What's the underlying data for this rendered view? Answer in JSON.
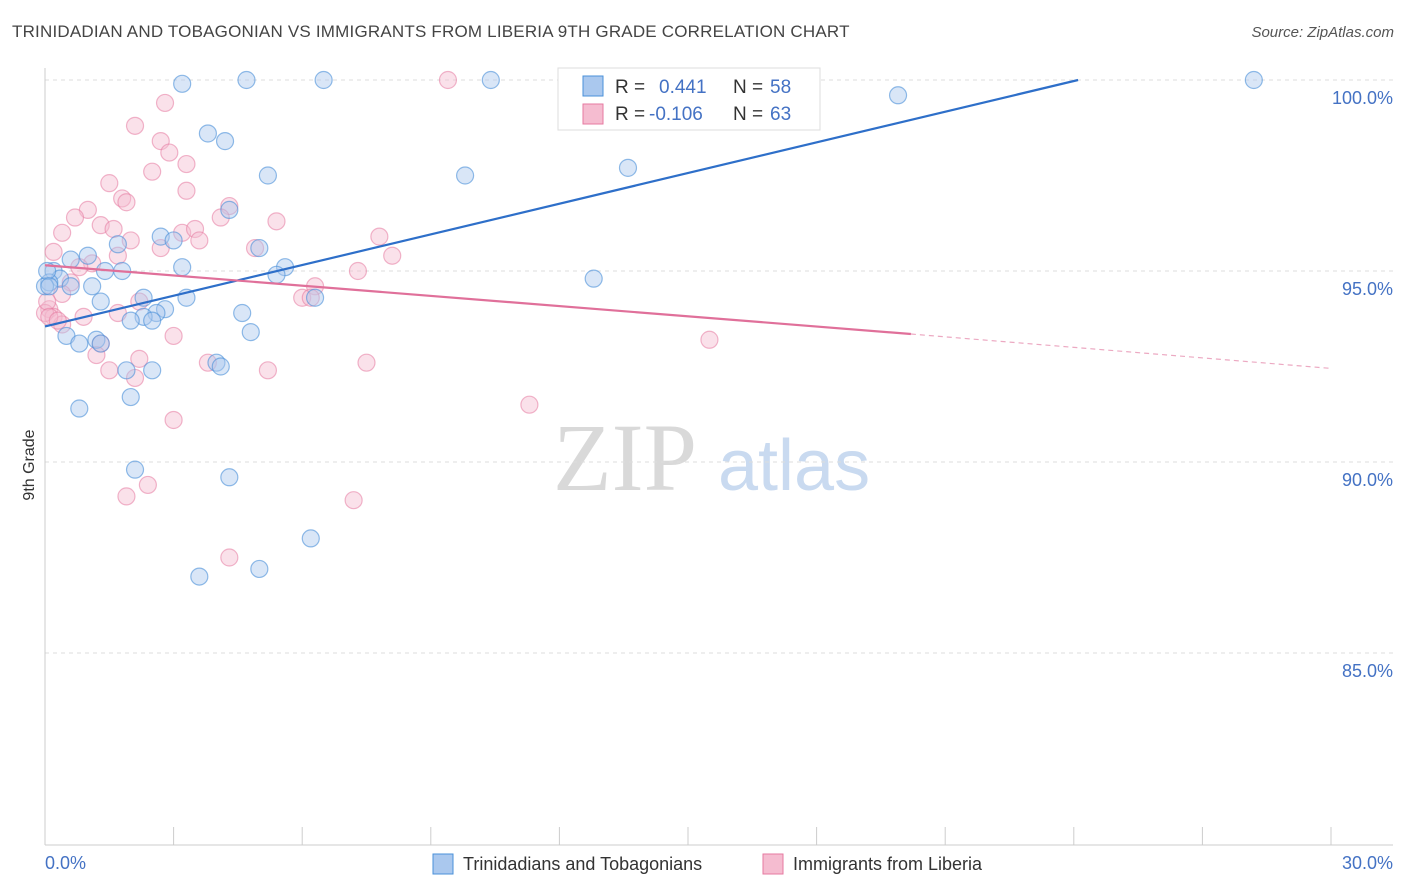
{
  "title": "TRINIDADIAN AND TOBAGONIAN VS IMMIGRANTS FROM LIBERIA 9TH GRADE CORRELATION CHART",
  "source": "Source: ZipAtlas.com",
  "watermark": {
    "zip": "ZIP",
    "atlas": "atlas"
  },
  "colors": {
    "blue": "#4a90d9",
    "blue_line": "#2e6fc9",
    "blue_fill": "#aac8ee",
    "pink": "#e67aa0",
    "pink_line": "#e0709a",
    "pink_fill": "#f5bcd0",
    "axis_text": "#4472c4",
    "grid": "#dddddd"
  },
  "legend": {
    "r_label": "R =",
    "n_label": "N =",
    "blue": {
      "r": "0.441",
      "n": "58"
    },
    "pink": {
      "r": "-0.106",
      "n": "63"
    }
  },
  "chart_data": {
    "type": "scatter",
    "title": "TRINIDADIAN AND TOBAGONIAN VS IMMIGRANTS FROM LIBERIA 9TH GRADE CORRELATION CHART",
    "xlabel": "",
    "ylabel": "9th Grade",
    "xlim": [
      0,
      30
    ],
    "ylim": [
      80.5,
      100.6
    ],
    "x_tick_labels": {
      "0": "0.0%",
      "30": "30.0%"
    },
    "y_ticks": [
      85,
      90,
      95,
      100
    ],
    "y_tick_labels": [
      "85.0%",
      "90.0%",
      "95.0%",
      "100.0%"
    ],
    "grid": true,
    "legend_position": "top-center",
    "series": [
      {
        "name": "Trinidadians and Tobagonians",
        "color": "#4a90d9",
        "r": 0.441,
        "n": 58,
        "trend": {
          "x": [
            0,
            24.1
          ],
          "y": [
            93.55,
            100.0
          ],
          "dashed_to": null
        },
        "points": [
          [
            3.2,
            99.9
          ],
          [
            4.7,
            100.0
          ],
          [
            6.5,
            100.0
          ],
          [
            10.4,
            100.0
          ],
          [
            28.2,
            100.0
          ],
          [
            19.9,
            99.6
          ],
          [
            3.8,
            98.6
          ],
          [
            4.2,
            98.4
          ],
          [
            5.2,
            97.5
          ],
          [
            9.8,
            97.5
          ],
          [
            13.6,
            97.7
          ],
          [
            4.3,
            96.6
          ],
          [
            2.7,
            95.9
          ],
          [
            3.0,
            95.8
          ],
          [
            5.0,
            95.6
          ],
          [
            1.7,
            95.7
          ],
          [
            1.0,
            95.4
          ],
          [
            0.6,
            95.3
          ],
          [
            3.2,
            95.1
          ],
          [
            5.6,
            95.1
          ],
          [
            0.2,
            95.0
          ],
          [
            1.4,
            95.0
          ],
          [
            1.8,
            95.0
          ],
          [
            0.35,
            94.8
          ],
          [
            5.4,
            94.9
          ],
          [
            12.8,
            94.8
          ],
          [
            0.1,
            94.7
          ],
          [
            0.6,
            94.6
          ],
          [
            1.1,
            94.6
          ],
          [
            1.3,
            94.2
          ],
          [
            2.3,
            94.3
          ],
          [
            3.3,
            94.3
          ],
          [
            6.3,
            94.3
          ],
          [
            2.8,
            94.0
          ],
          [
            2.6,
            93.9
          ],
          [
            2.3,
            93.8
          ],
          [
            4.6,
            93.9
          ],
          [
            2.0,
            93.7
          ],
          [
            2.5,
            93.7
          ],
          [
            4.8,
            93.4
          ],
          [
            0.5,
            93.3
          ],
          [
            1.2,
            93.2
          ],
          [
            0.8,
            93.1
          ],
          [
            1.3,
            93.1
          ],
          [
            4.0,
            92.6
          ],
          [
            4.1,
            92.5
          ],
          [
            1.9,
            92.4
          ],
          [
            2.5,
            92.4
          ],
          [
            0.8,
            91.4
          ],
          [
            2.0,
            91.7
          ],
          [
            2.1,
            89.8
          ],
          [
            4.3,
            89.6
          ],
          [
            6.2,
            88.0
          ],
          [
            3.6,
            87.0
          ],
          [
            5.0,
            87.2
          ],
          [
            0.0,
            94.6
          ],
          [
            0.05,
            95.0
          ],
          [
            0.1,
            94.6
          ]
        ]
      },
      {
        "name": "Immigrants from Liberia",
        "color": "#e67aa0",
        "r": -0.106,
        "n": 63,
        "trend": {
          "x": [
            0,
            20.2
          ],
          "y": [
            95.15,
            93.35
          ],
          "dashed_to": [
            30,
            92.45
          ]
        },
        "points": [
          [
            9.4,
            100.0
          ],
          [
            2.8,
            99.4
          ],
          [
            2.1,
            98.8
          ],
          [
            2.7,
            98.4
          ],
          [
            2.9,
            98.1
          ],
          [
            3.3,
            97.8
          ],
          [
            2.5,
            97.6
          ],
          [
            1.5,
            97.3
          ],
          [
            3.3,
            97.1
          ],
          [
            1.8,
            96.9
          ],
          [
            1.9,
            96.8
          ],
          [
            4.3,
            96.7
          ],
          [
            1.0,
            96.6
          ],
          [
            4.1,
            96.4
          ],
          [
            5.4,
            96.3
          ],
          [
            0.7,
            96.4
          ],
          [
            1.3,
            96.2
          ],
          [
            1.6,
            96.1
          ],
          [
            3.2,
            96.0
          ],
          [
            3.5,
            96.1
          ],
          [
            0.4,
            96.0
          ],
          [
            2.0,
            95.8
          ],
          [
            3.6,
            95.8
          ],
          [
            7.8,
            95.9
          ],
          [
            2.7,
            95.6
          ],
          [
            4.9,
            95.6
          ],
          [
            8.1,
            95.4
          ],
          [
            0.2,
            95.5
          ],
          [
            1.1,
            95.2
          ],
          [
            1.7,
            95.4
          ],
          [
            7.3,
            95.0
          ],
          [
            0.8,
            95.1
          ],
          [
            0.6,
            94.7
          ],
          [
            0.4,
            94.4
          ],
          [
            6.0,
            94.3
          ],
          [
            6.3,
            94.6
          ],
          [
            0.1,
            94.0
          ],
          [
            0.2,
            93.8
          ],
          [
            0.4,
            93.6
          ],
          [
            0.9,
            93.8
          ],
          [
            1.7,
            93.9
          ],
          [
            2.2,
            94.2
          ],
          [
            3.0,
            93.3
          ],
          [
            1.3,
            93.1
          ],
          [
            1.2,
            92.8
          ],
          [
            2.2,
            92.7
          ],
          [
            3.8,
            92.6
          ],
          [
            5.2,
            92.4
          ],
          [
            7.5,
            92.6
          ],
          [
            2.1,
            92.2
          ],
          [
            11.3,
            91.5
          ],
          [
            3.0,
            91.1
          ],
          [
            15.5,
            93.2
          ],
          [
            1.9,
            89.1
          ],
          [
            2.4,
            89.4
          ],
          [
            7.2,
            89.0
          ],
          [
            4.3,
            87.5
          ],
          [
            0.0,
            93.9
          ],
          [
            0.05,
            94.2
          ],
          [
            0.1,
            93.8
          ],
          [
            0.3,
            93.7
          ],
          [
            6.2,
            94.3
          ],
          [
            1.5,
            92.4
          ]
        ]
      }
    ]
  },
  "bottom_legend": {
    "blue_label": "Trinidadians and Tobagonians",
    "pink_label": "Immigrants from Liberia"
  }
}
